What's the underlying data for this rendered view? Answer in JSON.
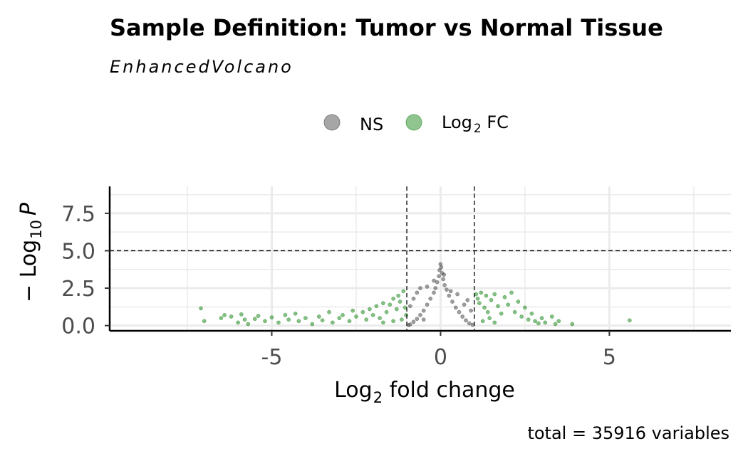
{
  "chart_data": {
    "type": "scatter",
    "title": "Sample Definition: Tumor vs Normal Tissue",
    "subtitle": "EnhancedVolcano",
    "xlabel_prefix": "Log",
    "xlabel_sub": "2",
    "xlabel_suffix": " fold change",
    "ylabel_prefix": "− Log",
    "ylabel_sub": "10",
    "ylabel_suffix": "P",
    "caption": "total = 35916 variables",
    "xlim": [
      -9.8,
      8.6
    ],
    "ylim": [
      -0.35,
      9.3
    ],
    "xticks": [
      -5,
      0,
      5
    ],
    "xtick_labels": [
      "-5",
      "0",
      "5"
    ],
    "yticks": [
      0,
      2.5,
      5,
      7.5
    ],
    "ytick_labels": [
      "0.0",
      "2.5",
      "5.0",
      "7.5"
    ],
    "fc_cutoff": 1,
    "p_cutoff_neglog10": 5,
    "grid": true,
    "legend_position": "top",
    "legend": [
      {
        "label": "NS",
        "color": "#4d4d4d"
      },
      {
        "label_prefix": "Log",
        "label_sub": "2",
        "label_suffix": " FC",
        "color": "#228b22"
      }
    ],
    "series": [
      {
        "name": "NS",
        "color": "#4d4d4d",
        "points": [
          [
            0,
            4.1
          ],
          [
            0.02,
            3.9
          ],
          [
            -0.03,
            3.7
          ],
          [
            0.05,
            3.5
          ],
          [
            -0.05,
            3.3
          ],
          [
            0.08,
            3.1
          ],
          [
            -0.1,
            2.9
          ],
          [
            0.12,
            2.7
          ],
          [
            -0.15,
            2.5
          ],
          [
            0.18,
            2.4
          ],
          [
            -0.2,
            2.2
          ],
          [
            0.25,
            2.0
          ],
          [
            -0.3,
            1.8
          ],
          [
            0.35,
            1.6
          ],
          [
            -0.4,
            1.4
          ],
          [
            0.45,
            1.2
          ],
          [
            -0.5,
            1.0
          ],
          [
            0.55,
            0.9
          ],
          [
            -0.6,
            0.7
          ],
          [
            0.65,
            0.6
          ],
          [
            -0.7,
            0.45
          ],
          [
            0.75,
            0.35
          ],
          [
            -0.8,
            0.25
          ],
          [
            0.85,
            0.15
          ],
          [
            -0.9,
            0.08
          ],
          [
            0.95,
            0.05
          ],
          [
            -0.95,
            0.03
          ],
          [
            -0.6,
            2.5
          ],
          [
            -0.4,
            2.6
          ],
          [
            0.3,
            2.3
          ],
          [
            0.5,
            2.1
          ],
          [
            -0.2,
            3.0
          ],
          [
            0.1,
            3.4
          ],
          [
            -0.8,
            1.8
          ],
          [
            0.8,
            1.7
          ],
          [
            -0.7,
            2.2
          ],
          [
            0.7,
            1.4
          ],
          [
            -0.9,
            1.3
          ],
          [
            0.9,
            1.0
          ],
          [
            -0.5,
            0.4
          ]
        ]
      },
      {
        "name": "Log2 FC",
        "color": "#228b22",
        "points": [
          [
            -7.1,
            1.15
          ],
          [
            -7.0,
            0.3
          ],
          [
            -6.5,
            0.5
          ],
          [
            -6.4,
            0.7
          ],
          [
            -6.2,
            0.6
          ],
          [
            -6.0,
            0.2
          ],
          [
            -5.9,
            0.75
          ],
          [
            -5.8,
            0.4
          ],
          [
            -5.7,
            0.1
          ],
          [
            -5.5,
            0.45
          ],
          [
            -5.4,
            0.65
          ],
          [
            -5.2,
            0.3
          ],
          [
            -5.0,
            0.55
          ],
          [
            -4.8,
            0.2
          ],
          [
            -4.6,
            0.7
          ],
          [
            -4.5,
            0.4
          ],
          [
            -4.3,
            0.8
          ],
          [
            -4.2,
            0.3
          ],
          [
            -4.0,
            0.5
          ],
          [
            -3.8,
            0.1
          ],
          [
            -3.6,
            0.6
          ],
          [
            -3.5,
            0.35
          ],
          [
            -3.3,
            0.9
          ],
          [
            -3.2,
            0.2
          ],
          [
            -3.0,
            0.5
          ],
          [
            -2.9,
            0.7
          ],
          [
            -2.7,
            0.3
          ],
          [
            -2.6,
            1.0
          ],
          [
            -2.5,
            0.6
          ],
          [
            -2.3,
            0.9
          ],
          [
            -2.2,
            0.4
          ],
          [
            -2.1,
            1.1
          ],
          [
            -2.0,
            0.7
          ],
          [
            -1.9,
            1.3
          ],
          [
            -1.8,
            0.5
          ],
          [
            -1.7,
            1.5
          ],
          [
            -1.6,
            0.9
          ],
          [
            -1.5,
            1.4
          ],
          [
            -1.4,
            1.8
          ],
          [
            -1.3,
            1.1
          ],
          [
            -1.25,
            2.0
          ],
          [
            -1.2,
            1.6
          ],
          [
            -1.15,
            0.4
          ],
          [
            -1.1,
            2.3
          ],
          [
            -1.05,
            1.2
          ],
          [
            -1.02,
            0.7
          ],
          [
            -1.4,
            0.3
          ],
          [
            -1.7,
            0.2
          ],
          [
            1.05,
            2.1
          ],
          [
            1.1,
            1.8
          ],
          [
            1.15,
            1.5
          ],
          [
            1.2,
            2.2
          ],
          [
            1.3,
            1.2
          ],
          [
            1.35,
            2.0
          ],
          [
            1.4,
            0.9
          ],
          [
            1.5,
            1.7
          ],
          [
            1.6,
            2.1
          ],
          [
            1.7,
            1.3
          ],
          [
            1.8,
            0.8
          ],
          [
            1.9,
            1.9
          ],
          [
            2.0,
            1.4
          ],
          [
            2.1,
            2.2
          ],
          [
            2.2,
            0.9
          ],
          [
            2.3,
            1.6
          ],
          [
            2.4,
            0.6
          ],
          [
            2.5,
            1.2
          ],
          [
            2.6,
            0.4
          ],
          [
            2.7,
            0.8
          ],
          [
            2.8,
            0.3
          ],
          [
            3.0,
            0.5
          ],
          [
            3.1,
            0.2
          ],
          [
            3.3,
            0.6
          ],
          [
            3.4,
            0.1
          ],
          [
            3.5,
            0.3
          ],
          [
            3.9,
            0.1
          ],
          [
            5.6,
            0.35
          ],
          [
            1.25,
            0.3
          ],
          [
            1.45,
            0.5
          ],
          [
            2.9,
            0.15
          ],
          [
            1.6,
            0.2
          ]
        ]
      }
    ]
  }
}
